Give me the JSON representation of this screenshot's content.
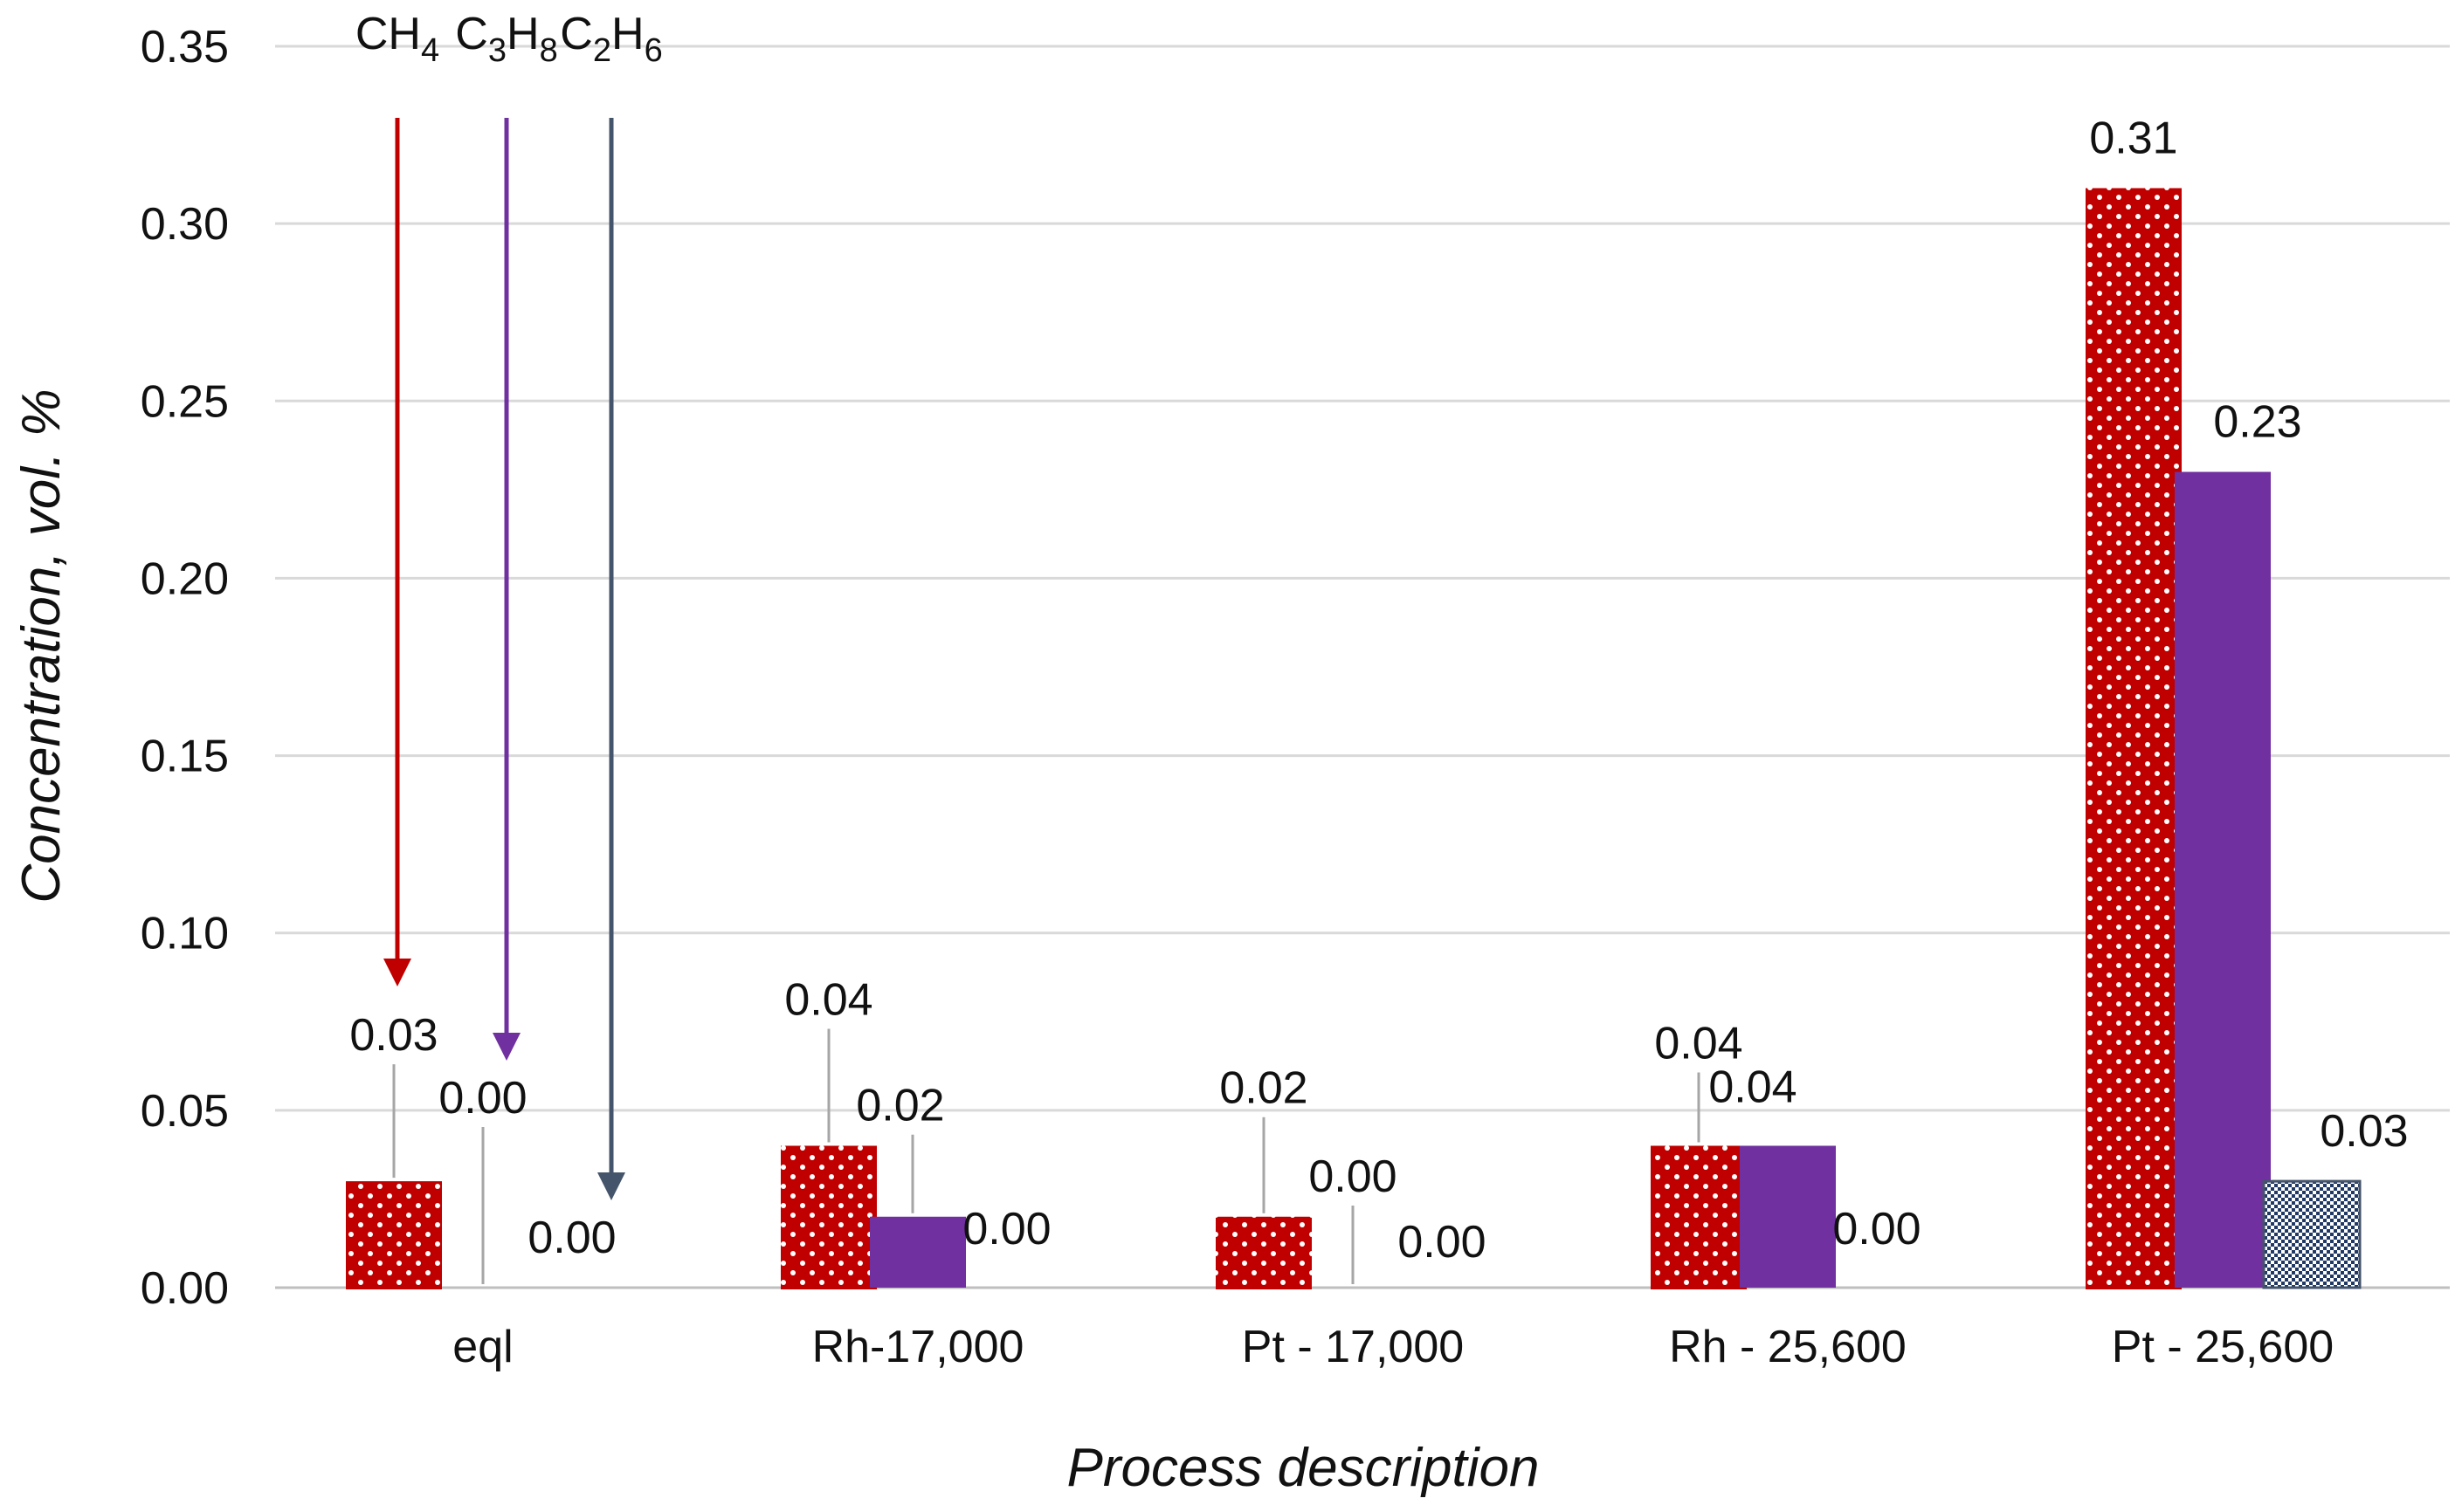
{
  "chart_data": {
    "type": "bar",
    "title": "",
    "xlabel": "Process description",
    "ylabel": "Concentration, vol. %",
    "ylim": [
      0,
      0.35
    ],
    "yticks": [
      "0.00",
      "0.05",
      "0.10",
      "0.15",
      "0.20",
      "0.25",
      "0.30",
      "0.35"
    ],
    "grid": true,
    "categories": [
      "eql",
      "Rh-17,000",
      "Pt - 17,000",
      "Rh - 25,600",
      "Pt - 25,600"
    ],
    "series": [
      {
        "name": "CH4",
        "color": "#c00000",
        "pattern": "dots",
        "values": [
          0.03,
          0.04,
          0.02,
          0.04,
          0.31
        ],
        "labels": [
          "0.03",
          "0.04",
          "0.02",
          "0.04",
          "0.31"
        ]
      },
      {
        "name": "C3H8",
        "color": "#7030a0",
        "pattern": "solid",
        "values": [
          0.0,
          0.02,
          0.0,
          0.04,
          0.23
        ],
        "labels": [
          "0.00",
          "0.02",
          "0.00",
          "0.04",
          "0.23"
        ]
      },
      {
        "name": "C2H6",
        "color": "#44546a",
        "pattern": "checker",
        "values": [
          0.0,
          0.0,
          0.0,
          0.0,
          0.03
        ],
        "labels": [
          "0.00",
          "0.00",
          "0.00",
          "0.00",
          "0.03"
        ]
      }
    ],
    "legend_annotations": [
      {
        "base": "CH",
        "sub": "4",
        "color": "#c00000"
      },
      {
        "base": "C",
        "sub1": "3",
        "mid": "H",
        "sub2": "8",
        "color": "#7030a0"
      },
      {
        "base": "C",
        "sub1": "2",
        "mid": "H",
        "sub2": "6",
        "color": "#44546a"
      }
    ]
  }
}
